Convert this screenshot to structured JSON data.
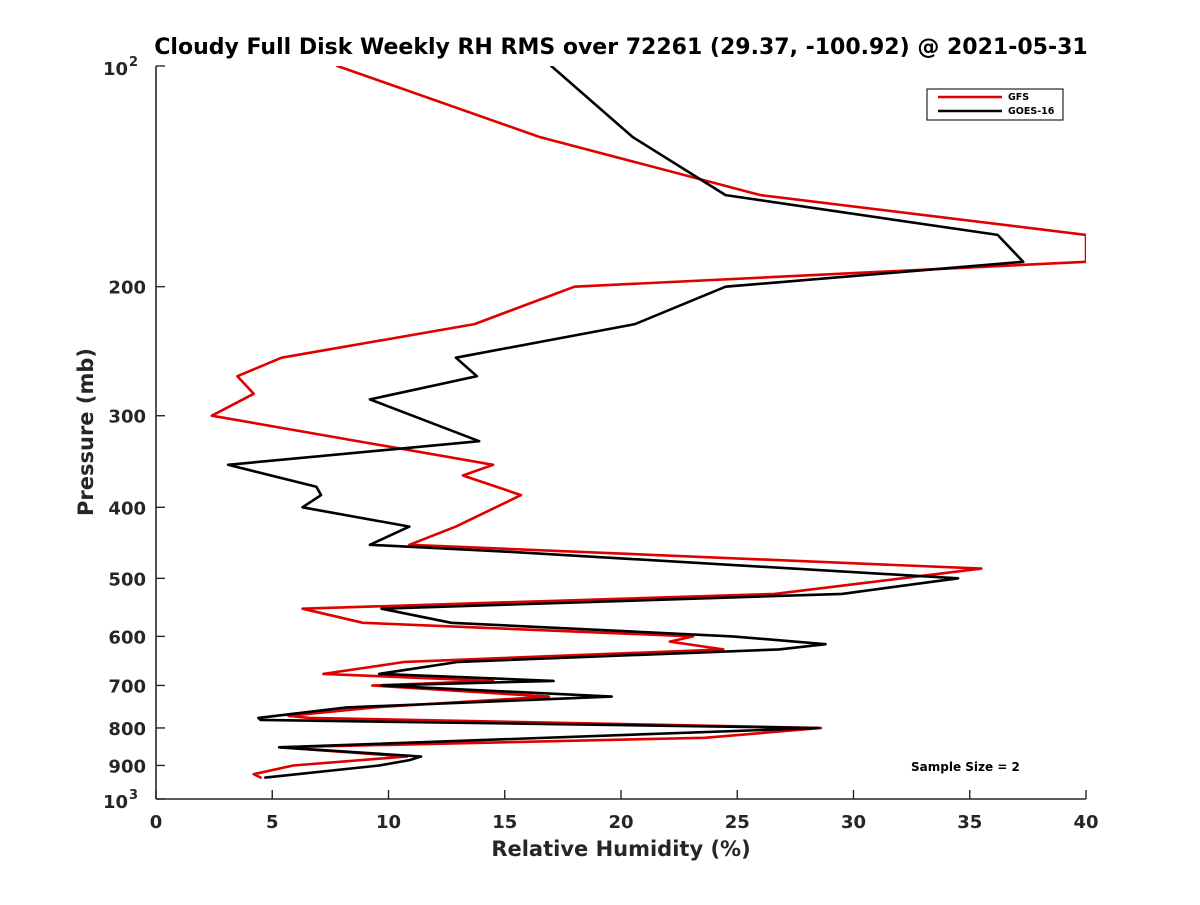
{
  "chart_data": {
    "type": "line",
    "title": "Cloudy Full Disk Weekly RH RMS over 72261 (29.37, -100.92) @ 2021-05-31",
    "xlabel": "Relative Humidity (%)",
    "ylabel": "Pressure (mb)",
    "xlim": [
      0,
      40
    ],
    "ylim": [
      100,
      1000
    ],
    "y_scale": "log",
    "y_reversed": true,
    "grid": false,
    "legend_placement": "top-right",
    "annotation": "Sample Size = 2",
    "x_ticks": [
      "0",
      "5",
      "10",
      "15",
      "20",
      "25",
      "30",
      "35",
      "40"
    ],
    "y_ticks": [
      {
        "value": 100,
        "base": "10",
        "exp": "2"
      },
      {
        "value": 200,
        "label": "200"
      },
      {
        "value": 300,
        "label": "300"
      },
      {
        "value": 400,
        "label": "400"
      },
      {
        "value": 500,
        "label": "500"
      },
      {
        "value": 600,
        "label": "600"
      },
      {
        "value": 700,
        "label": "700"
      },
      {
        "value": 800,
        "label": "800"
      },
      {
        "value": 900,
        "label": "900"
      },
      {
        "value": 1000,
        "base": "10",
        "exp": "3"
      }
    ],
    "series": [
      {
        "name": "GFS",
        "color": "#e00000",
        "points": [
          [
            7.8,
            100
          ],
          [
            16.5,
            125
          ],
          [
            26.0,
            150
          ],
          [
            40.0,
            170
          ],
          [
            40.0,
            185
          ],
          [
            18.0,
            200
          ],
          [
            13.7,
            225
          ],
          [
            5.4,
            250
          ],
          [
            3.5,
            265
          ],
          [
            4.2,
            280
          ],
          [
            2.4,
            300
          ],
          [
            14.5,
            350
          ],
          [
            13.2,
            362
          ],
          [
            15.7,
            385
          ],
          [
            12.9,
            425
          ],
          [
            10.9,
            450
          ],
          [
            35.5,
            485
          ],
          [
            26.6,
            525
          ],
          [
            6.3,
            550
          ],
          [
            8.9,
            575
          ],
          [
            23.1,
            600
          ],
          [
            22.1,
            610
          ],
          [
            24.4,
            625
          ],
          [
            10.7,
            650
          ],
          [
            7.2,
            675
          ],
          [
            14.5,
            690
          ],
          [
            9.3,
            700
          ],
          [
            16.9,
            725
          ],
          [
            9.4,
            750
          ],
          [
            5.7,
            770
          ],
          [
            6.6,
            775
          ],
          [
            28.6,
            800
          ],
          [
            23.6,
            825
          ],
          [
            5.3,
            850
          ],
          [
            10.8,
            875
          ],
          [
            5.9,
            900
          ],
          [
            4.2,
            925
          ],
          [
            4.5,
            935
          ]
        ]
      },
      {
        "name": "GOES-16",
        "color": "#000000",
        "points": [
          [
            17.0,
            100
          ],
          [
            20.5,
            125
          ],
          [
            24.5,
            150
          ],
          [
            36.2,
            170
          ],
          [
            37.3,
            185
          ],
          [
            24.5,
            200
          ],
          [
            20.6,
            225
          ],
          [
            12.9,
            250
          ],
          [
            13.8,
            265
          ],
          [
            9.2,
            285
          ],
          [
            13.9,
            325
          ],
          [
            3.1,
            350
          ],
          [
            6.9,
            375
          ],
          [
            7.1,
            385
          ],
          [
            6.3,
            400
          ],
          [
            10.9,
            425
          ],
          [
            9.2,
            450
          ],
          [
            15.2,
            460
          ],
          [
            34.5,
            500
          ],
          [
            29.5,
            525
          ],
          [
            9.7,
            550
          ],
          [
            12.7,
            575
          ],
          [
            24.8,
            600
          ],
          [
            28.8,
            615
          ],
          [
            26.8,
            625
          ],
          [
            13.0,
            650
          ],
          [
            9.6,
            675
          ],
          [
            17.1,
            690
          ],
          [
            9.7,
            700
          ],
          [
            19.6,
            725
          ],
          [
            8.2,
            750
          ],
          [
            4.4,
            775
          ],
          [
            4.5,
            780
          ],
          [
            28.5,
            800
          ],
          [
            5.3,
            850
          ],
          [
            11.4,
            875
          ],
          [
            10.9,
            885
          ],
          [
            9.6,
            900
          ],
          [
            4.7,
            935
          ]
        ]
      }
    ]
  }
}
